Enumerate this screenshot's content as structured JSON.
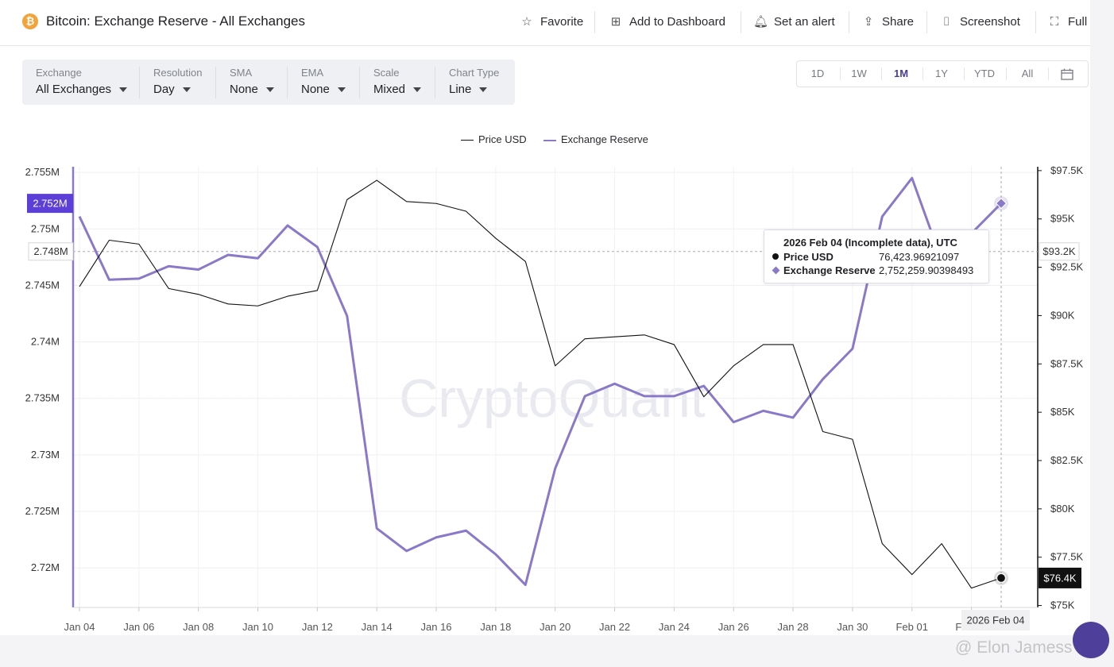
{
  "header": {
    "logo_glyph": "₿",
    "title": "Bitcoin: Exchange Reserve - All Exchanges",
    "actions": [
      {
        "label": "Favorite",
        "icon": "star-icon",
        "glyph": "☆"
      },
      {
        "label": "Add to Dashboard",
        "icon": "add-dashboard-icon",
        "glyph": "⊞"
      },
      {
        "label": "Set an alert",
        "icon": "bell-icon",
        "glyph": "🔔︎"
      },
      {
        "label": "Share",
        "icon": "share-icon",
        "glyph": "⇪"
      },
      {
        "label": "Screenshot",
        "icon": "camera-icon",
        "glyph": "⌷"
      },
      {
        "label": "Full",
        "icon": "fullscreen-icon",
        "glyph": "⛶"
      }
    ]
  },
  "controls": [
    {
      "label": "Exchange",
      "value": "All Exchanges"
    },
    {
      "label": "Resolution",
      "value": "Day"
    },
    {
      "label": "SMA",
      "value": "None"
    },
    {
      "label": "EMA",
      "value": "None"
    },
    {
      "label": "Scale",
      "value": "Mixed"
    },
    {
      "label": "Chart Type",
      "value": "Line"
    }
  ],
  "ranges": [
    "1D",
    "1W",
    "1M",
    "1Y",
    "YTD",
    "All"
  ],
  "active_range": "1M",
  "calendar_icon": "calendar-icon",
  "colors": {
    "price": "#111111",
    "reserve": "#8a78c8",
    "reserve_badge": "#5b3fd6"
  },
  "watermark": "CryptoQuant",
  "footer_user": "@ Elon Jamess",
  "tooltip": {
    "title": "2026 Feb 04 (Incomplete data), UTC",
    "rows": [
      {
        "name": "Price USD",
        "value": "76,423.96921097"
      },
      {
        "name": "Exchange Reserve",
        "value": "2,752,259.90398493"
      }
    ]
  },
  "badges": {
    "reserve_current": "2.752M",
    "reserve_crosshair": "2.748M",
    "price_crosshair": "$93.2K",
    "price_current": "$76.4K",
    "x_crosshair": "2026 Feb 04"
  },
  "chart_data": {
    "type": "line",
    "legend": [
      "Price USD",
      "Exchange Reserve"
    ],
    "legend_position": "top-center",
    "x_tick_labels": [
      "Jan 04",
      "Jan 06",
      "Jan 08",
      "Jan 10",
      "Jan 12",
      "Jan 14",
      "Jan 16",
      "Jan 18",
      "Jan 20",
      "Jan 22",
      "Jan 24",
      "Jan 26",
      "Jan 28",
      "Jan 30",
      "Feb 01",
      "Feb 03"
    ],
    "y_left_ticks": [
      "2.72M",
      "2.725M",
      "2.73M",
      "2.735M",
      "2.74M",
      "2.745M",
      "2.75M",
      "2.755M"
    ],
    "y_right_ticks": [
      "$75K",
      "$77.5K",
      "$80K",
      "$82.5K",
      "$85K",
      "$87.5K",
      "$90K",
      "$92.5K",
      "$95K",
      "$97.5K"
    ],
    "y_left_range": [
      2.7165,
      2.7555
    ],
    "y_right_range": [
      74900,
      97700
    ],
    "x": [
      "Jan 04",
      "Jan 05",
      "Jan 06",
      "Jan 07",
      "Jan 08",
      "Jan 09",
      "Jan 10",
      "Jan 11",
      "Jan 12",
      "Jan 13",
      "Jan 14",
      "Jan 15",
      "Jan 16",
      "Jan 17",
      "Jan 18",
      "Jan 19",
      "Jan 20",
      "Jan 21",
      "Jan 22",
      "Jan 23",
      "Jan 24",
      "Jan 25",
      "Jan 26",
      "Jan 27",
      "Jan 28",
      "Jan 29",
      "Jan 30",
      "Jan 31",
      "Feb 01",
      "Feb 02",
      "Feb 03",
      "Feb 04"
    ],
    "series": [
      {
        "name": "Price USD",
        "axis": "right",
        "values": [
          91500,
          93900,
          93700,
          91400,
          91100,
          90600,
          90500,
          91000,
          91300,
          96000,
          97000,
          95900,
          95800,
          95400,
          94000,
          92800,
          87400,
          88800,
          88900,
          89000,
          88500,
          85800,
          87400,
          88500,
          88500,
          84000,
          83600,
          78200,
          76600,
          78200,
          75900,
          76424
        ]
      },
      {
        "name": "Exchange Reserve",
        "axis": "left",
        "values": [
          2.7511,
          2.7455,
          2.7456,
          2.7467,
          2.7464,
          2.7477,
          2.7474,
          2.7503,
          2.7484,
          2.7423,
          2.7235,
          2.7215,
          2.7227,
          2.7233,
          2.7212,
          2.7185,
          2.7288,
          2.7352,
          2.7363,
          2.7352,
          2.7352,
          2.7361,
          2.7329,
          2.7339,
          2.7333,
          2.7367,
          2.7394,
          2.7511,
          2.7545,
          2.7472,
          2.7496,
          2.75226
        ]
      }
    ],
    "crosshair": {
      "x": "Feb 04",
      "y_left": 2.748,
      "y_right": 93200
    },
    "grid": true
  }
}
